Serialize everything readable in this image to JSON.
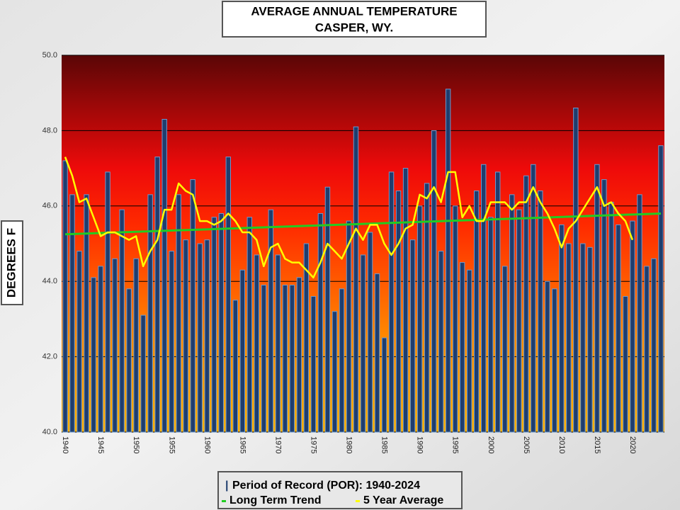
{
  "chart_data": {
    "type": "bar",
    "title": "AVERAGE ANNUAL TEMPERATURE",
    "subtitle": "CASPER, WY.",
    "y_label": "DEGREES F",
    "categories": [
      "1940",
      null,
      null,
      null,
      null,
      "1945",
      null,
      null,
      null,
      null,
      "1950",
      null,
      null,
      null,
      null,
      "1955",
      null,
      null,
      null,
      null,
      "1960",
      null,
      null,
      null,
      null,
      "1965",
      null,
      null,
      null,
      null,
      "1970",
      null,
      null,
      null,
      null,
      "1975",
      null,
      null,
      null,
      null,
      "1980",
      null,
      null,
      null,
      null,
      "1985",
      null,
      null,
      null,
      null,
      "1990",
      null,
      null,
      null,
      null,
      "1995",
      null,
      null,
      null,
      null,
      "2000",
      null,
      null,
      null,
      null,
      "2005",
      null,
      null,
      null,
      null,
      "2010",
      null,
      null,
      null,
      null,
      "2015",
      null,
      null,
      null,
      null,
      "2020",
      null,
      null,
      null,
      null
    ],
    "series": [
      {
        "name": "Period of Record (POR): 1940-2024",
        "color": "#1f3d6e",
        "values": [
          47.2,
          46.3,
          44.8,
          46.3,
          44.1,
          44.4,
          46.9,
          44.6,
          45.9,
          43.8,
          44.6,
          43.1,
          46.3,
          47.3,
          48.3,
          44.8,
          46.3,
          45.1,
          46.7,
          45.0,
          45.1,
          45.7,
          45.8,
          47.3,
          43.5,
          44.3,
          45.7,
          44.7,
          43.9,
          45.9,
          44.7,
          43.9,
          43.9,
          44.1,
          45.0,
          43.6,
          45.8,
          46.5,
          43.2,
          43.8,
          45.6,
          48.1,
          44.7,
          45.3,
          44.2,
          42.5,
          46.9,
          46.4,
          47.0,
          45.1,
          46.0,
          46.6,
          48.0,
          44.8,
          49.1,
          46.0,
          44.5,
          44.3,
          46.4,
          47.1,
          45.7,
          46.9,
          44.4,
          46.3,
          45.9,
          46.8,
          47.1,
          46.4,
          44.0,
          43.8,
          45.5,
          45.0,
          48.6,
          45.0,
          44.9,
          47.1,
          46.7,
          46.1,
          45.5,
          43.6,
          45.6,
          46.3,
          44.4,
          44.6,
          47.6
        ]
      },
      {
        "name": "5 Year Average",
        "color": "#ffff00",
        "line": true,
        "values": [
          47.3,
          46.8,
          46.1,
          46.2,
          45.7,
          45.2,
          45.3,
          45.3,
          45.2,
          45.1,
          45.2,
          44.4,
          44.8,
          45.1,
          45.9,
          45.9,
          46.6,
          46.4,
          46.3,
          45.6,
          45.6,
          45.5,
          45.6,
          45.8,
          45.6,
          45.3,
          45.3,
          45.1,
          44.4,
          44.9,
          45.0,
          44.6,
          44.5,
          44.5,
          44.3,
          44.1,
          44.5,
          45.0,
          44.8,
          44.6,
          45.0,
          45.4,
          45.1,
          45.5,
          45.5,
          45.0,
          44.7,
          45.0,
          45.4,
          45.5,
          46.3,
          46.2,
          46.5,
          46.1,
          46.9,
          46.9,
          45.7,
          46.0,
          45.6,
          45.6,
          46.1,
          46.1,
          46.1,
          45.9,
          46.1,
          46.1,
          46.5,
          46.1,
          45.8,
          45.4,
          44.9,
          45.4,
          45.6,
          45.9,
          46.2,
          46.5,
          46.0,
          46.1,
          45.8,
          45.6,
          45.1,
          null,
          null,
          null,
          null
        ]
      }
    ],
    "trend": {
      "name": "Long Term Trend",
      "color": "#22cc22",
      "x": [
        1940,
        2024
      ],
      "values": [
        45.25,
        45.8
      ]
    },
    "first_year": 1940,
    "ylim": [
      40,
      50
    ],
    "yticks": [
      {
        "value": 40,
        "label": "40.0"
      },
      {
        "value": 42,
        "label": "42.0"
      },
      {
        "value": 44,
        "label": "44.0"
      },
      {
        "value": 46,
        "label": "46.0"
      },
      {
        "value": 48,
        "label": "48.0"
      },
      {
        "value": 50,
        "label": "50.0"
      }
    ],
    "grid": true
  }
}
